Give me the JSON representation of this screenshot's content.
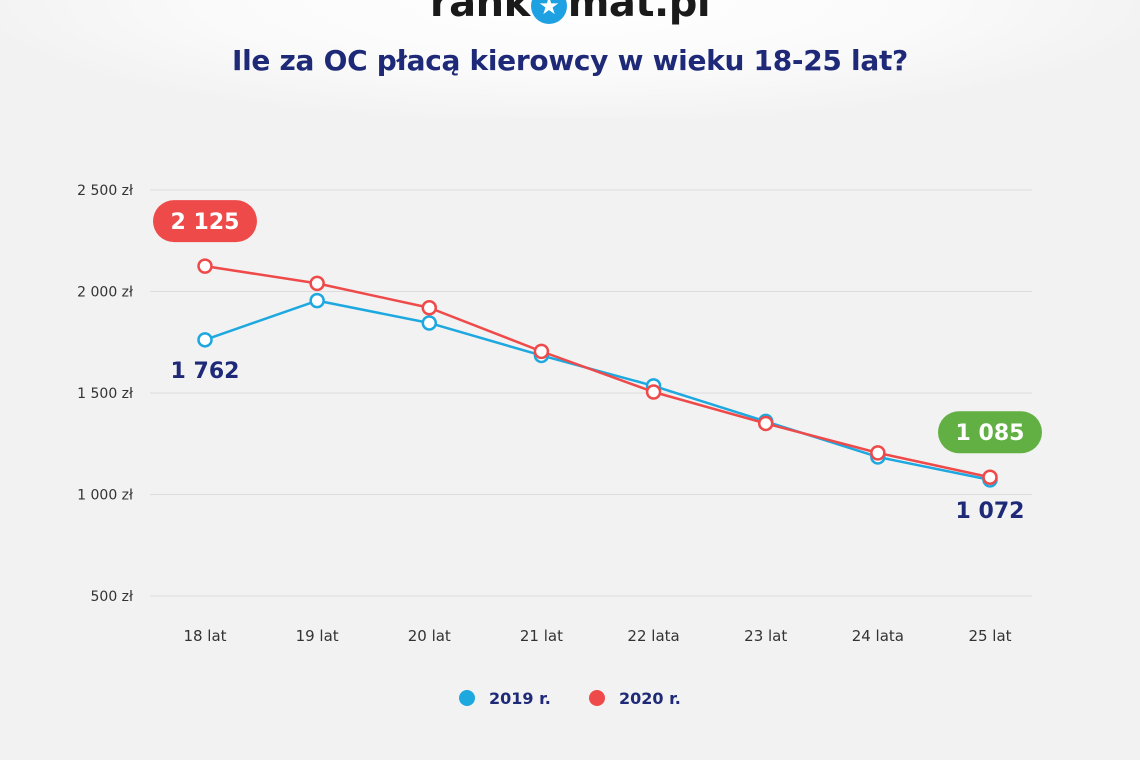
{
  "header": {
    "logo_before": "rank",
    "logo_after": "mat.pl",
    "logo_icon": "star-icon"
  },
  "chart_data": {
    "type": "line",
    "title": "Ile za OC płacą kierowcy w wieku 18-25 lat?",
    "categories": [
      "18 lat",
      "19 lat",
      "20 lat",
      "21 lat",
      "22 lata",
      "23 lat",
      "24 lata",
      "25 lat"
    ],
    "yticks": [
      {
        "value": 500,
        "label": "500 zł"
      },
      {
        "value": 1000,
        "label": "1 000 zł"
      },
      {
        "value": 1500,
        "label": "1 500 zł"
      },
      {
        "value": 2000,
        "label": "2 000 zł"
      },
      {
        "value": 2500,
        "label": "2 500 zł"
      }
    ],
    "ylim": [
      500,
      2500
    ],
    "grid": true,
    "legend_position": "bottom-center",
    "series": [
      {
        "name": "2019 r.",
        "color": "#1ea8e0",
        "values": [
          1762,
          1955,
          1845,
          1685,
          1535,
          1360,
          1185,
          1072
        ]
      },
      {
        "name": "2020 r.",
        "color": "#ef4a4a",
        "values": [
          2125,
          2040,
          1920,
          1705,
          1505,
          1350,
          1205,
          1085
        ]
      }
    ],
    "annotations": [
      {
        "series": 1,
        "index": 0,
        "text": "2 125",
        "style": "badge",
        "color": "#ef4a4a",
        "placement": "above"
      },
      {
        "series": 0,
        "index": 0,
        "text": "1 762",
        "style": "label",
        "placement": "below"
      },
      {
        "series": 1,
        "index": 7,
        "text": "1 085",
        "style": "badge",
        "color": "#62b043",
        "placement": "above"
      },
      {
        "series": 0,
        "index": 7,
        "text": "1 072",
        "style": "label",
        "placement": "below"
      }
    ]
  }
}
